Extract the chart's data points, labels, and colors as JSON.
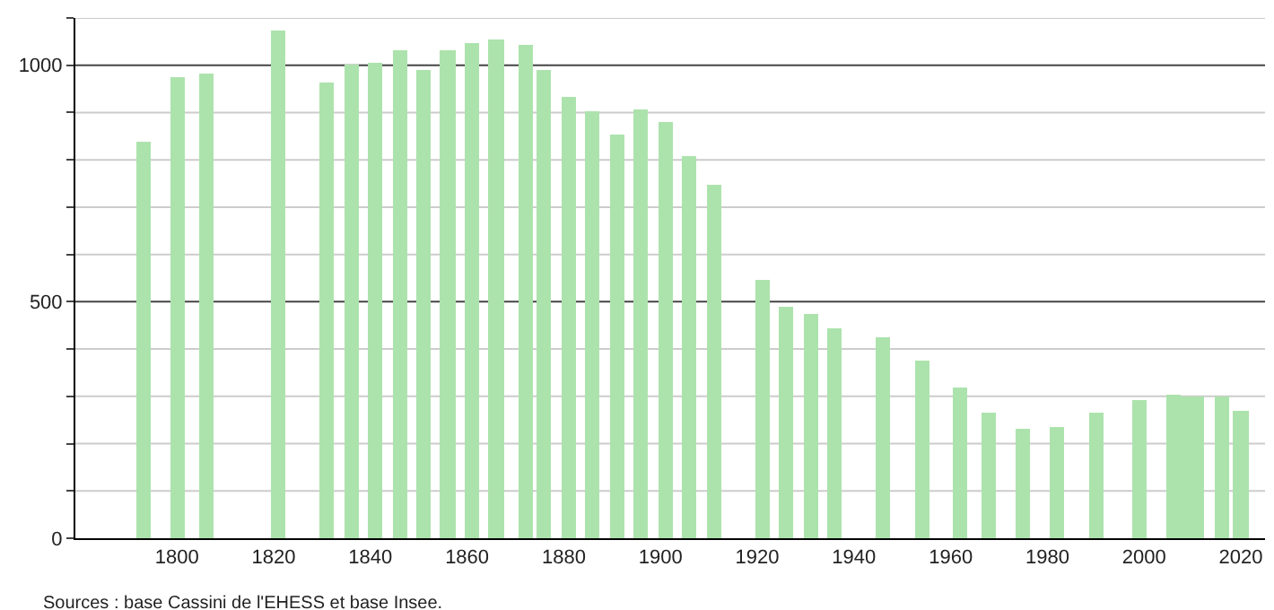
{
  "chart_data": {
    "type": "bar",
    "x": [
      1793,
      1800,
      1806,
      1821,
      1831,
      1836,
      1841,
      1846,
      1851,
      1856,
      1861,
      1866,
      1872,
      1876,
      1881,
      1886,
      1891,
      1896,
      1901,
      1906,
      1911,
      1921,
      1926,
      1931,
      1936,
      1946,
      1954,
      1962,
      1968,
      1975,
      1982,
      1990,
      1999,
      2006,
      2008,
      2011,
      2016,
      2020
    ],
    "values": [
      837,
      976,
      981,
      1072,
      964,
      1001,
      1006,
      1030,
      990,
      1030,
      1046,
      1053,
      1043,
      990,
      933,
      901,
      853,
      905,
      879,
      807,
      746,
      548,
      491,
      476,
      445,
      423,
      377,
      320,
      266,
      232,
      235,
      266,
      293,
      305,
      301,
      301,
      301,
      270
    ],
    "color": "#ace3ac",
    "xlim": [
      1779,
      2025
    ],
    "xticks": [
      1800,
      1820,
      1840,
      1860,
      1880,
      1900,
      1920,
      1940,
      1960,
      1980,
      2000,
      2020
    ],
    "ylim": [
      0,
      1100
    ],
    "yticks": [
      0,
      {
        "value": 100,
        "label": null
      },
      {
        "value": 200,
        "label": null
      },
      {
        "value": 300,
        "label": null
      },
      {
        "value": 400,
        "label": null
      },
      500,
      {
        "value": 600,
        "label": null
      },
      {
        "value": 700,
        "label": null
      },
      {
        "value": 800,
        "label": null
      },
      {
        "value": 900,
        "label": null
      },
      1000,
      {
        "value": 1100,
        "label": null
      }
    ],
    "grid": "y",
    "annotations": [
      "Sources : base Cassini de l'EHESS et base Insee."
    ]
  }
}
